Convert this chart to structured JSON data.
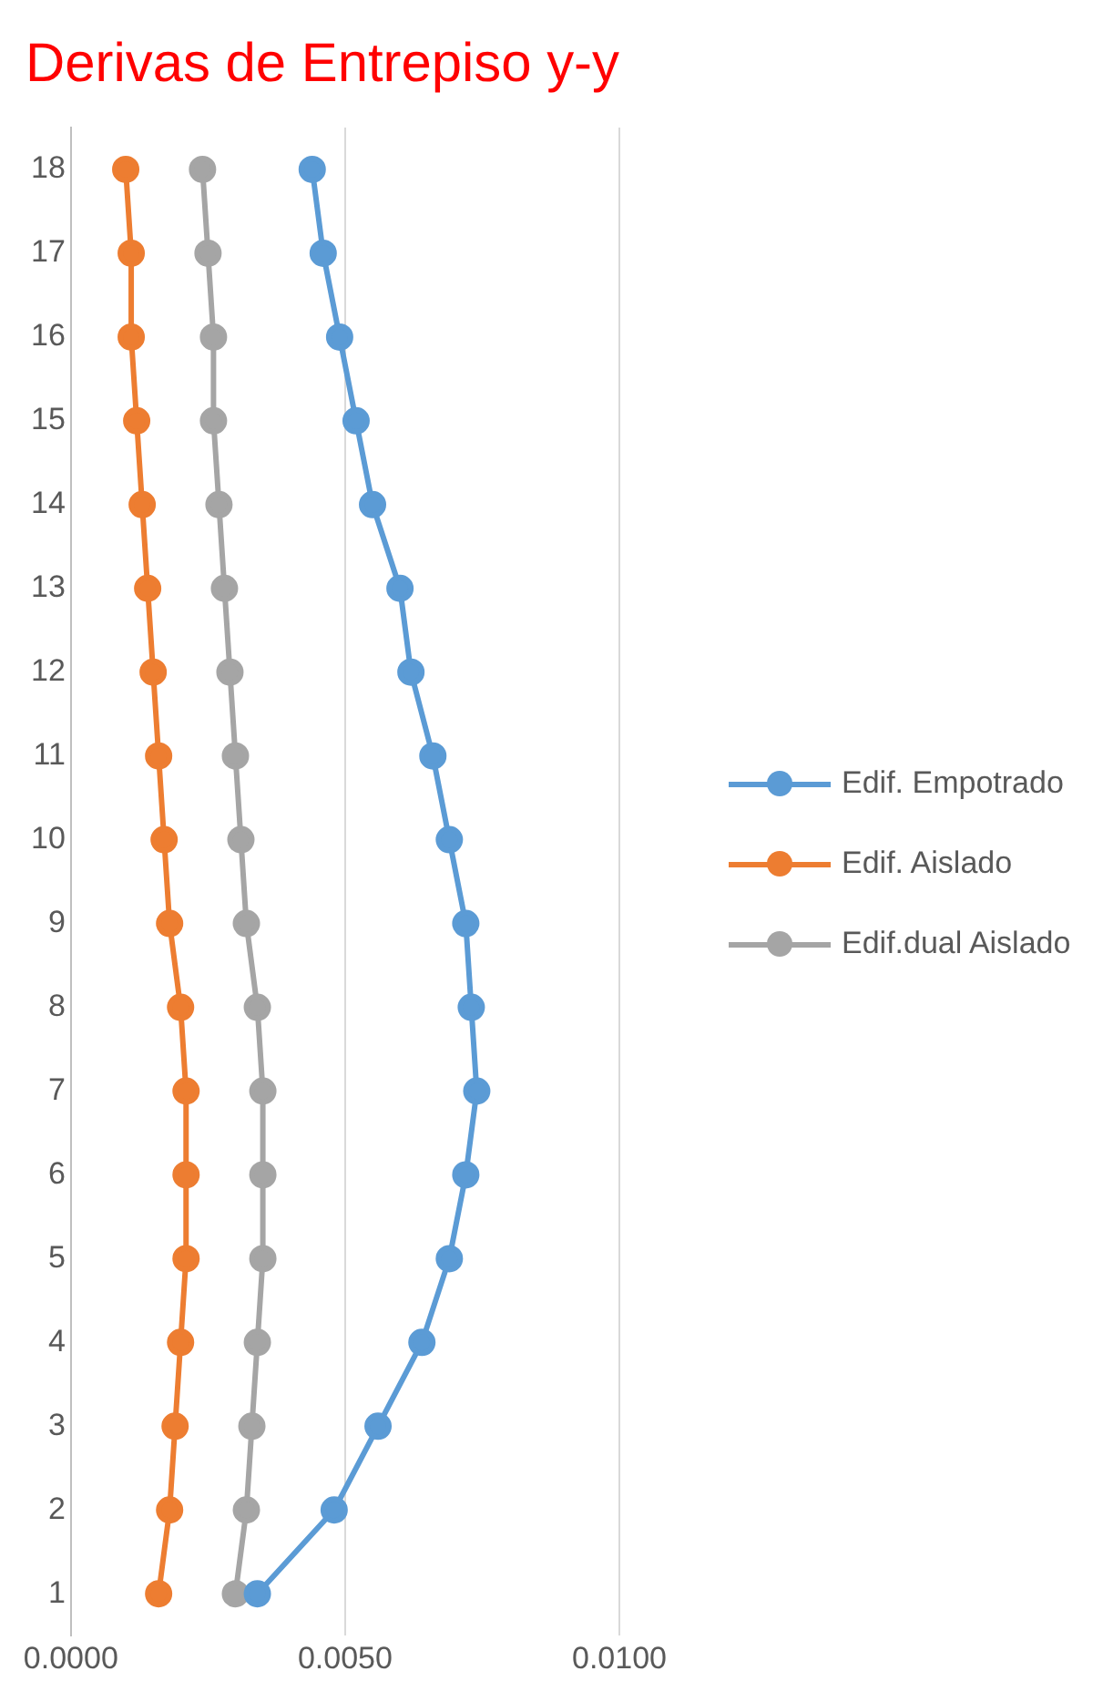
{
  "chart_data": {
    "type": "line",
    "orientation": "horizontal",
    "title": "Derivas de Entrepiso y-y",
    "categories": [
      "18",
      "17",
      "16",
      "15",
      "14",
      "13",
      "12",
      "11",
      "10",
      "9",
      "8",
      "7",
      "6",
      "5",
      "4",
      "3",
      "2",
      "1"
    ],
    "series": [
      {
        "name": "Edif. Empotrado",
        "color": "#5b9bd5",
        "values": [
          0.0044,
          0.0046,
          0.0049,
          0.0052,
          0.0055,
          0.006,
          0.0062,
          0.0066,
          0.0069,
          0.0072,
          0.0073,
          0.0074,
          0.0072,
          0.0069,
          0.0064,
          0.0056,
          0.0048,
          0.0034
        ]
      },
      {
        "name": "Edif. Aislado",
        "color": "#ed7d31",
        "values": [
          0.001,
          0.0011,
          0.0011,
          0.0012,
          0.0013,
          0.0014,
          0.0015,
          0.0016,
          0.0017,
          0.0018,
          0.002,
          0.0021,
          0.0021,
          0.0021,
          0.002,
          0.0019,
          0.0018,
          0.0016
        ]
      },
      {
        "name": "Edif.dual Aislado",
        "color": "#a5a5a5",
        "values": [
          0.0024,
          0.0025,
          0.0026,
          0.0026,
          0.0027,
          0.0028,
          0.0029,
          0.003,
          0.0031,
          0.0032,
          0.0034,
          0.0035,
          0.0035,
          0.0035,
          0.0034,
          0.0033,
          0.0032,
          0.003
        ]
      }
    ],
    "xlim": [
      0,
      0.01
    ],
    "xticks": [
      {
        "value": 0,
        "label": "0.0000"
      },
      {
        "value": 0.005,
        "label": "0.0050"
      },
      {
        "value": 0.01,
        "label": "0.0100"
      }
    ],
    "grid": "x",
    "legend": "right",
    "marker": "circle",
    "line_style": "solid"
  }
}
